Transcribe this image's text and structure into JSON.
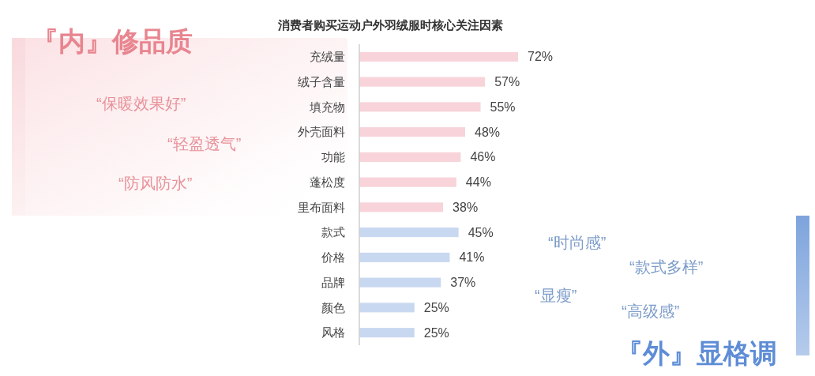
{
  "chart_data": {
    "type": "bar",
    "orientation": "horizontal",
    "title": "消费者购买运动户外羽绒服时核心关注因素",
    "categories": [
      "充绒量",
      "绒子含量",
      "填充物",
      "外壳面料",
      "功能",
      "蓬松度",
      "里布面料",
      "款式",
      "价格",
      "品牌",
      "颜色",
      "风格"
    ],
    "values": [
      72,
      57,
      55,
      48,
      46,
      44,
      38,
      45,
      41,
      37,
      25,
      25
    ],
    "colors": [
      "#f8d3da",
      "#f8d3da",
      "#f8d3da",
      "#f8d3da",
      "#f8d3da",
      "#f8d3da",
      "#f8d3da",
      "#c9d8f1",
      "#c9d8f1",
      "#c9d8f1",
      "#c9d8f1",
      "#c9d8f1"
    ],
    "value_labels": [
      "72%",
      "57%",
      "55%",
      "48%",
      "46%",
      "44%",
      "38%",
      "45%",
      "41%",
      "37%",
      "25%",
      "25%"
    ],
    "tick_labels": "y",
    "annotations": [
      "『内』修品质",
      "“保暖效果好”",
      "“轻盈透气”",
      "“防风防水”",
      "“时尚感”",
      "“款式多样”",
      "“显瘦”",
      "“高级感”",
      "『外』显格调"
    ]
  }
}
